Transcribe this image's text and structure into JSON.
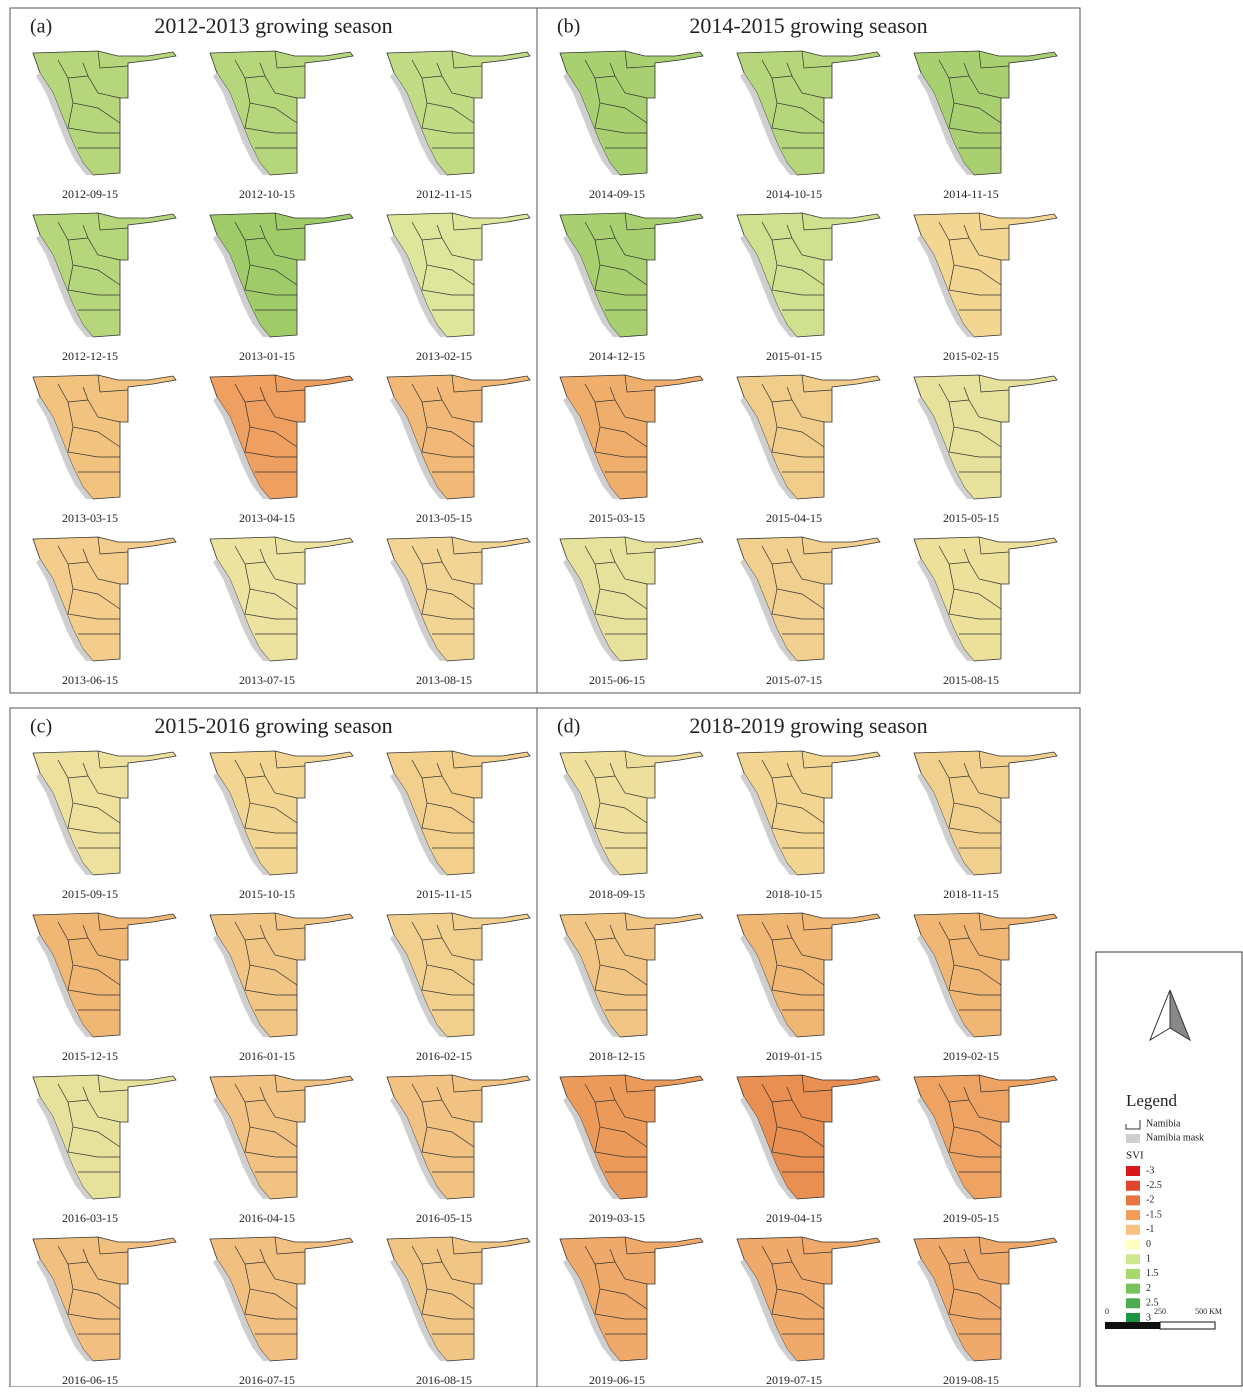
{
  "panels": [
    {
      "label": "(a)",
      "title": "2012-2013 growing season",
      "maps": [
        {
          "date": "2012-09-15",
          "color": "#b5d67a"
        },
        {
          "date": "2012-10-15",
          "color": "#b5d67a"
        },
        {
          "date": "2012-11-15",
          "color": "#c2dc85"
        },
        {
          "date": "2012-12-15",
          "color": "#b5d67a"
        },
        {
          "date": "2013-01-15",
          "color": "#9fcb68"
        },
        {
          "date": "2013-02-15",
          "color": "#dde69a"
        },
        {
          "date": "2013-03-15",
          "color": "#f2c37f"
        },
        {
          "date": "2013-04-15",
          "color": "#ef9f60"
        },
        {
          "date": "2013-05-15",
          "color": "#f2b877"
        },
        {
          "date": "2013-06-15",
          "color": "#f4cd8c"
        },
        {
          "date": "2013-07-15",
          "color": "#ece3a0"
        },
        {
          "date": "2013-08-15",
          "color": "#f2d594"
        }
      ]
    },
    {
      "label": "(b)",
      "title": "2014-2015 growing season",
      "maps": [
        {
          "date": "2014-09-15",
          "color": "#a8d070"
        },
        {
          "date": "2014-10-15",
          "color": "#b5d67a"
        },
        {
          "date": "2014-11-15",
          "color": "#a8d070"
        },
        {
          "date": "2014-12-15",
          "color": "#a8d070"
        },
        {
          "date": "2015-01-15",
          "color": "#cfe18e"
        },
        {
          "date": "2015-02-15",
          "color": "#f3d692"
        },
        {
          "date": "2015-03-15",
          "color": "#f0ae6c"
        },
        {
          "date": "2015-04-15",
          "color": "#f1cd8b"
        },
        {
          "date": "2015-05-15",
          "color": "#e6e29c"
        },
        {
          "date": "2015-06-15",
          "color": "#e6e29c"
        },
        {
          "date": "2015-07-15",
          "color": "#f1d08f"
        },
        {
          "date": "2015-08-15",
          "color": "#ece09a"
        }
      ]
    },
    {
      "label": "(c)",
      "title": "2015-2016 growing season",
      "maps": [
        {
          "date": "2015-09-15",
          "color": "#eee19e"
        },
        {
          "date": "2015-10-15",
          "color": "#f3d592"
        },
        {
          "date": "2015-11-15",
          "color": "#f3cf8c"
        },
        {
          "date": "2015-12-15",
          "color": "#f0b673"
        },
        {
          "date": "2016-01-15",
          "color": "#f1c584"
        },
        {
          "date": "2016-02-15",
          "color": "#f1d08e"
        },
        {
          "date": "2016-03-15",
          "color": "#e6e29c"
        },
        {
          "date": "2016-04-15",
          "color": "#f1c282"
        },
        {
          "date": "2016-05-15",
          "color": "#f1c282"
        },
        {
          "date": "2016-06-15",
          "color": "#f1c080"
        },
        {
          "date": "2016-07-15",
          "color": "#f1c080"
        },
        {
          "date": "2016-08-15",
          "color": "#f1c584"
        }
      ]
    },
    {
      "label": "(d)",
      "title": "2018-2019 growing season",
      "maps": [
        {
          "date": "2018-09-15",
          "color": "#eedf9c"
        },
        {
          "date": "2018-10-15",
          "color": "#f3d592"
        },
        {
          "date": "2018-11-15",
          "color": "#f1d08e"
        },
        {
          "date": "2018-12-15",
          "color": "#f1c584"
        },
        {
          "date": "2019-01-15",
          "color": "#f0b673"
        },
        {
          "date": "2019-02-15",
          "color": "#f0b673"
        },
        {
          "date": "2019-03-15",
          "color": "#ec9a5a"
        },
        {
          "date": "2019-04-15",
          "color": "#ea8f52"
        },
        {
          "date": "2019-05-15",
          "color": "#eea363"
        },
        {
          "date": "2019-06-15",
          "color": "#efa96a"
        },
        {
          "date": "2019-07-15",
          "color": "#efa96a"
        },
        {
          "date": "2019-08-15",
          "color": "#efa96a"
        }
      ]
    }
  ],
  "legend": {
    "title": "Legend",
    "boundary": "Namibia",
    "mask": "Namibia mask",
    "mask_color": "#cfcfcf",
    "index": "SVI",
    "classes": [
      {
        "label": "-3",
        "color": "#d7191c"
      },
      {
        "label": "-2.5",
        "color": "#e0452e"
      },
      {
        "label": "-2",
        "color": "#ea7440"
      },
      {
        "label": "-1.5",
        "color": "#f39c5a"
      },
      {
        "label": "-1",
        "color": "#f7c182"
      },
      {
        "label": "0",
        "color": "#ffffbf"
      },
      {
        "label": "1",
        "color": "#cfe88f"
      },
      {
        "label": "1.5",
        "color": "#a6d96a"
      },
      {
        "label": "2",
        "color": "#77c35c"
      },
      {
        "label": "2.5",
        "color": "#4cad4e"
      },
      {
        "label": "3",
        "color": "#1a9641"
      }
    ]
  },
  "scale": {
    "ticks": [
      "0",
      "250",
      "500 KM"
    ]
  }
}
